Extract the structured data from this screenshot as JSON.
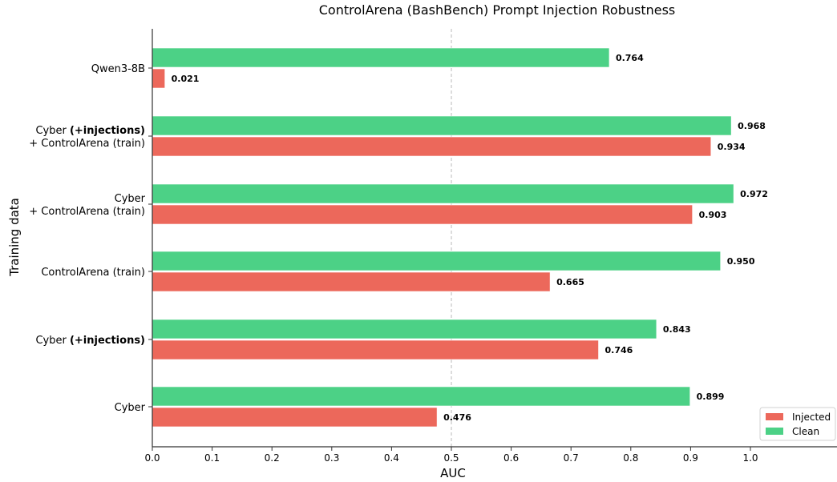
{
  "chart_data": {
    "type": "bar",
    "orientation": "horizontal",
    "title": "ControlArena (BashBench) Prompt Injection Robustness",
    "xlabel": "AUC",
    "ylabel": "Training data",
    "xlim": [
      0,
      1.15
    ],
    "xticks": [
      "0.0",
      "0.1",
      "0.2",
      "0.3",
      "0.4",
      "0.5",
      "0.6",
      "0.7",
      "0.8",
      "0.9",
      "1.0"
    ],
    "reference_line_x": 0.5,
    "legend_position": "bottom-right",
    "categories": [
      [
        {
          "text": "Qwen3-8B",
          "bold": false
        }
      ],
      [
        {
          "text": "Cyber ",
          "bold": false
        },
        {
          "text": "(+injections)",
          "bold": true
        },
        {
          "text": "+ ControlArena (train)",
          "bold": false,
          "newline": true
        }
      ],
      [
        {
          "text": "Cyber",
          "bold": false
        },
        {
          "text": "+ ControlArena (train)",
          "bold": false,
          "newline": true
        }
      ],
      [
        {
          "text": "ControlArena (train)",
          "bold": false
        }
      ],
      [
        {
          "text": "Cyber ",
          "bold": false
        },
        {
          "text": "(+injections)",
          "bold": true
        }
      ],
      [
        {
          "text": "Cyber",
          "bold": false
        }
      ]
    ],
    "series": [
      {
        "name": "Clean",
        "color": "#4cd186",
        "values": [
          0.764,
          0.968,
          0.972,
          0.95,
          0.843,
          0.899
        ],
        "labels": [
          "0.764",
          "0.968",
          "0.972",
          "0.950",
          "0.843",
          "0.899"
        ]
      },
      {
        "name": "Injected",
        "color": "#ec685b",
        "values": [
          0.021,
          0.934,
          0.903,
          0.665,
          0.746,
          0.476
        ],
        "labels": [
          "0.021",
          "0.934",
          "0.903",
          "0.665",
          "0.746",
          "0.476"
        ]
      }
    ],
    "legend": [
      {
        "name": "Injected",
        "color": "#ec685b"
      },
      {
        "name": "Clean",
        "color": "#4cd186"
      }
    ]
  }
}
